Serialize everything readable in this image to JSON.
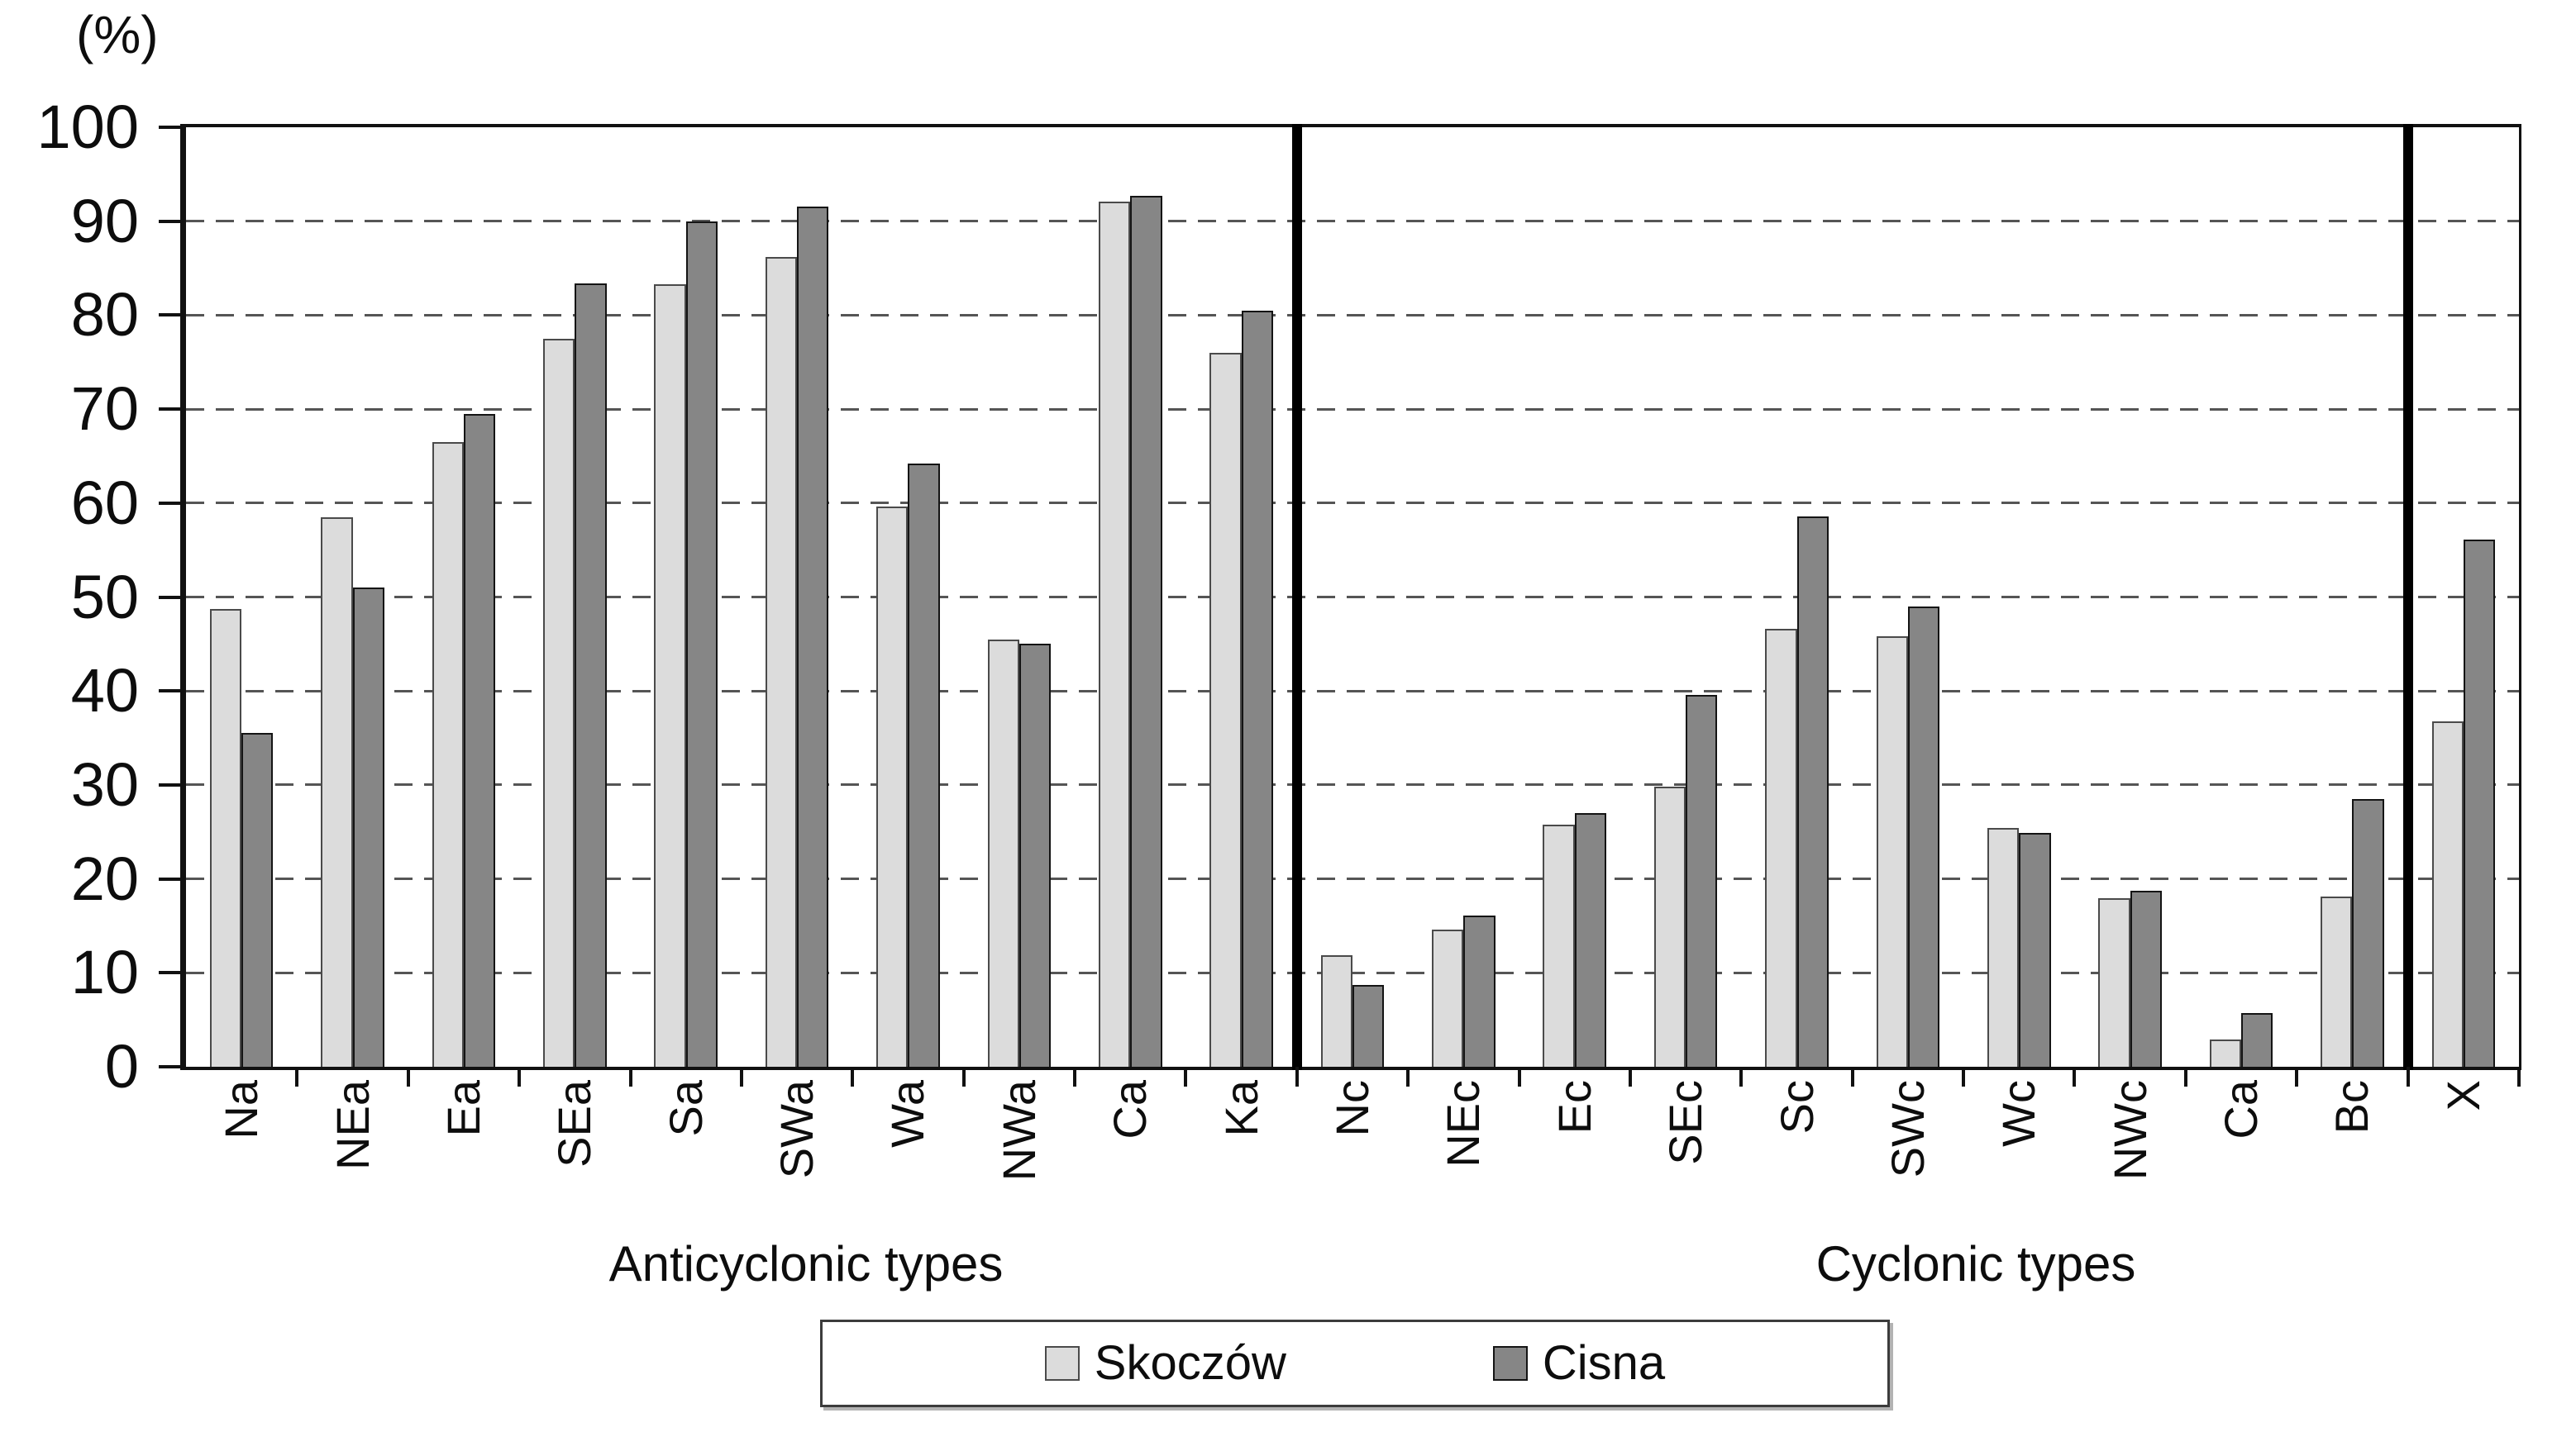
{
  "figure": {
    "y_axis_unit_label": "(%)",
    "y_tick_labels": [
      "100",
      "90",
      "80",
      "70",
      "60",
      "50",
      "40",
      "30",
      "20",
      "10",
      "0"
    ]
  },
  "legend": {
    "items": [
      {
        "label": "Skoczów",
        "color": "#dcdcdc",
        "border": "#4a4a4a"
      },
      {
        "label": "Cisna",
        "color": "#868686",
        "border": "#141414"
      }
    ]
  },
  "chart_data": {
    "type": "bar",
    "title": "",
    "xlabel": "",
    "ylabel": "(%)",
    "ylim": [
      0,
      100
    ],
    "grid_step": 10,
    "grid": "horizontal dashed",
    "legend_position": "bottom",
    "categories": [
      "Na",
      "NEa",
      "Ea",
      "SEa",
      "Sa",
      "SWa",
      "Wa",
      "NWa",
      "Ca",
      "Ka",
      "Nc",
      "NEc",
      "Ec",
      "SEc",
      "Sc",
      "SWc",
      "Wc",
      "NWc",
      "Ca",
      "Bc",
      "X"
    ],
    "series": [
      {
        "name": "Skoczów",
        "color": "#dcdcdc",
        "values": [
          48.7,
          58.5,
          66.5,
          77.5,
          83.3,
          86.2,
          59.6,
          45.5,
          92.1,
          76.0,
          11.9,
          14.6,
          25.8,
          29.8,
          46.6,
          45.8,
          25.4,
          17.9,
          2.9,
          18.1,
          36.8
        ]
      },
      {
        "name": "Cisna",
        "color": "#868686",
        "values": [
          35.5,
          51.0,
          69.5,
          83.4,
          90.0,
          91.6,
          64.2,
          45.0,
          92.7,
          80.5,
          8.7,
          16.1,
          27.0,
          39.6,
          58.6,
          49.0,
          24.9,
          18.7,
          5.7,
          28.5,
          56.1
        ]
      }
    ],
    "sections": [
      {
        "label": "Anticyclonic types",
        "from": 0,
        "to": 9
      },
      {
        "label": "Cyclonic types",
        "from": 10,
        "to": 19
      },
      {
        "label": "",
        "from": 20,
        "to": 20
      }
    ],
    "divider_after_indices": [
      9,
      19
    ]
  }
}
